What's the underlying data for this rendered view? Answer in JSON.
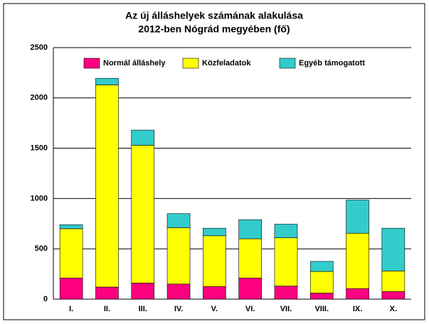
{
  "chart_data": {
    "type": "stacked_bar",
    "title": [
      "Az új álláshelyek számának alakulása",
      "2012-ben Nógrád megyében (fő)"
    ],
    "categories": [
      "I.",
      "II.",
      "III.",
      "IV.",
      "V.",
      "VI.",
      "VII.",
      "VIII.",
      "IX.",
      "X."
    ],
    "series": [
      {
        "name": "Normál álláshely",
        "color": "#ff0080",
        "values": [
          210,
          120,
          160,
          150,
          125,
          210,
          130,
          60,
          105,
          75
        ]
      },
      {
        "name": "Közfeladatok",
        "color": "#ffff00",
        "values": [
          490,
          2010,
          1370,
          560,
          505,
          390,
          480,
          215,
          550,
          205
        ]
      },
      {
        "name": "Egyéb támogatott",
        "color": "#33cccc",
        "values": [
          40,
          65,
          150,
          140,
          75,
          190,
          135,
          100,
          330,
          425
        ]
      }
    ],
    "ylim": [
      0,
      2500
    ],
    "yticks": [
      0,
      500,
      1000,
      1500,
      2000,
      2500
    ],
    "grid": true,
    "legend": "top"
  }
}
